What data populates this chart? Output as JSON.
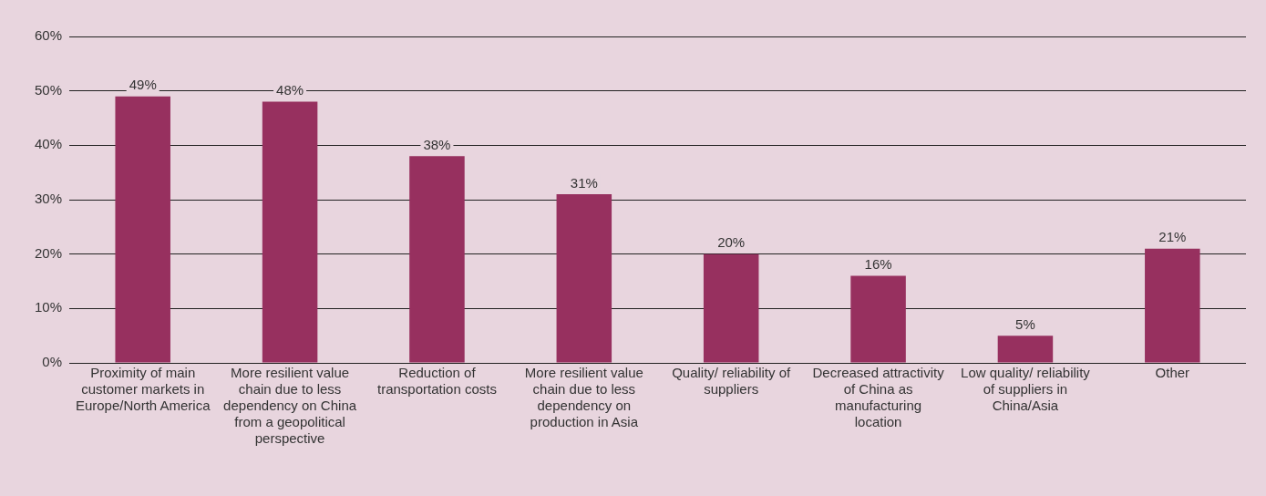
{
  "chart_data": {
    "type": "bar",
    "categories": [
      "Proximity of main customer markets in Europe/North America",
      "More resilient value chain due to less dependency on China from a geopolitical perspective",
      "Reduction of transportation costs",
      "More resilient value chain due to less dependency on production in Asia",
      "Quality/ reliability of suppliers",
      "Decreased attractivity of China as manufacturing location",
      "Low quality/ reliability of suppliers in China/Asia",
      "Other"
    ],
    "values": [
      49,
      48,
      38,
      31,
      20,
      16,
      5,
      21
    ],
    "value_labels": [
      "49%",
      "48%",
      "38%",
      "31%",
      "20%",
      "16%",
      "5%",
      "21%"
    ],
    "color": "#97305f",
    "ylim": [
      0,
      60
    ],
    "yticks": [
      {
        "value": 0,
        "label": "0%"
      },
      {
        "value": 10,
        "label": "10%"
      },
      {
        "value": 20,
        "label": "20%"
      },
      {
        "value": 30,
        "label": "30%"
      },
      {
        "value": 40,
        "label": "40%"
      },
      {
        "value": 50,
        "label": "50%"
      },
      {
        "value": 60,
        "label": "60%"
      }
    ],
    "grid": "y"
  }
}
